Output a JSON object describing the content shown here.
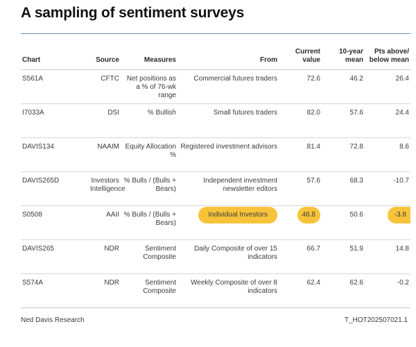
{
  "title": "A sampling of sentiment surveys",
  "columns": {
    "chart": "Chart",
    "source": "Source",
    "measures": "Measures",
    "from": "From",
    "current": "Current value",
    "mean": "10-year mean",
    "pts": "Pts above/ below mean"
  },
  "rows": [
    {
      "chart": "S561A",
      "source": "CFTC",
      "measures": "Net positions as a % of 76-wk range",
      "from": "Commercial futures traders",
      "current": "72.6",
      "mean": "46.2",
      "pts": "26.4",
      "highlight": false
    },
    {
      "chart": "I7033A",
      "source": "DSI",
      "measures": "% Bullish",
      "from": "Small futures traders",
      "current": "82.0",
      "mean": "57.6",
      "pts": "24.4",
      "highlight": false
    },
    {
      "chart": "DAVIS134",
      "source": "NAAIM",
      "measures": "Equity Allocation %",
      "from": "Registered investment advisors",
      "current": "81.4",
      "mean": "72.8",
      "pts": "8.6",
      "highlight": false
    },
    {
      "chart": "DAVIS265D",
      "source": "Investors Intelligence",
      "measures": "% Bulls / (Bulls + Bears)",
      "from": "Independent investment newsletter editors",
      "current": "57.6",
      "mean": "68.3",
      "pts": "-10.7",
      "highlight": false
    },
    {
      "chart": "S0508",
      "source": "AAII",
      "measures": "% Bulls / (Bulls + Bears)",
      "from": "Individual Investors",
      "current": "46.8",
      "mean": "50.6",
      "pts": "-3.8",
      "highlight": true
    },
    {
      "chart": "DAVIS265",
      "source": "NDR",
      "measures": "Sentiment Composite",
      "from": "Daily Composite of over 15 indicators",
      "current": "66.7",
      "mean": "51.9",
      "pts": "14.8",
      "highlight": false
    },
    {
      "chart": "S574A",
      "source": "NDR",
      "measures": "Sentiment Composite",
      "from": "Weekly Composite of over 8 indicators",
      "current": "62.4",
      "mean": "62.6",
      "pts": "-0.2",
      "highlight": false
    }
  ],
  "footer": {
    "source": "Ned Davis Research",
    "code": "T_HOT202507021.1"
  },
  "colors": {
    "highlight": "#f7c33a",
    "top_rule": "#6b8fb3"
  }
}
